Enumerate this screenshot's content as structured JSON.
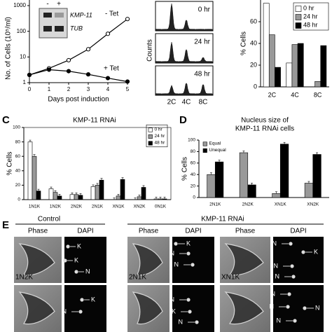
{
  "chart_data": [
    {
      "type": "line",
      "ylabel": "No. of Cells (10⁵/ml)",
      "xlabel": "Days post induction",
      "x": [
        0,
        1,
        2,
        3,
        4,
        5
      ],
      "xlim": [
        0,
        5
      ],
      "xticks": [
        0,
        1,
        2,
        3,
        4,
        5
      ],
      "log_y": true,
      "ylim": [
        1,
        1000
      ],
      "yticks": [
        1,
        10,
        100,
        1000
      ],
      "series": [
        {
          "name": "- Tet",
          "color": "#000000",
          "marker_fill": "#ffffff",
          "values": [
            2,
            3.6,
            7.5,
            20,
            80,
            300
          ]
        },
        {
          "name": "+ Tet",
          "color": "#000000",
          "marker_fill": "#000000",
          "values": [
            2,
            3.2,
            2.8,
            2.1,
            1.5,
            1.1
          ]
        }
      ],
      "inset": {
        "lanes": [
          "-",
          "+"
        ],
        "bands": [
          "KMP-11",
          "TUB"
        ]
      }
    },
    {
      "type": "bar",
      "ylabel": "% Cells",
      "categories": [
        "2C",
        "4C",
        "8C"
      ],
      "ylim": [
        0,
        80
      ],
      "yticks": [
        0,
        20,
        40,
        60
      ],
      "legend": "top-right",
      "series": [
        {
          "name": "0 hr",
          "color": "#ffffff",
          "values": [
            77,
            22,
            0
          ]
        },
        {
          "name": "24 hr",
          "color": "#999999",
          "values": [
            48,
            39,
            5
          ]
        },
        {
          "name": "48 hr",
          "color": "#000000",
          "values": [
            18,
            40,
            38
          ]
        }
      ]
    },
    {
      "type": "bar",
      "letter": "C",
      "title": "KMP-11 RNAi",
      "ylabel": "% Cells",
      "categories": [
        "1N1K",
        "1N2K",
        "2N2K",
        "2N1K",
        "XN1K",
        "XN2K",
        "0N1K"
      ],
      "ylim": [
        0,
        100
      ],
      "yticks": [
        0,
        20,
        40,
        60,
        80,
        100
      ],
      "legend": "top-right",
      "series": [
        {
          "name": "0 hr",
          "color": "#ffffff",
          "values": [
            80,
            15,
            7,
            18,
            0,
            0,
            1
          ]
        },
        {
          "name": "24 hr",
          "color": "#999999",
          "values": [
            60,
            10,
            7,
            20,
            5,
            4,
            1
          ]
        },
        {
          "name": "48 hr",
          "color": "#000000",
          "values": [
            12,
            5,
            6,
            27,
            28,
            17,
            1
          ]
        }
      ]
    },
    {
      "type": "bar",
      "letter": "D",
      "title_lines": [
        "Nucleus size of",
        "KMP-11 RNAi cells"
      ],
      "ylabel": "% Cells",
      "categories": [
        "2N1K",
        "2N2K",
        "XN1K",
        "XN2K"
      ],
      "ylim": [
        0,
        100
      ],
      "yticks": [
        0,
        20,
        40,
        60,
        80,
        100
      ],
      "legend": "top-left",
      "series": [
        {
          "name": "Equal",
          "color": "#999999",
          "values": [
            40,
            78,
            7,
            25
          ]
        },
        {
          "name": "Unequal",
          "color": "#000000",
          "values": [
            62,
            22,
            93,
            75
          ]
        }
      ]
    }
  ],
  "histograms": {
    "timepoints": [
      "0 hr",
      "24 hr",
      "48 hr"
    ],
    "ylabel": "Counts",
    "xlabels": [
      "2C",
      "4C",
      "8C"
    ]
  },
  "microscopy": {
    "letter": "E",
    "groups": [
      "Control",
      "KMP-11 RNAi"
    ],
    "column_headers": [
      "Phase",
      "DAPI",
      "Phase",
      "DAPI",
      "Phase",
      "DAPI"
    ],
    "cell_labels": [
      "1N2K",
      "2N1K",
      "XN1K"
    ],
    "arrow_labels": [
      "K",
      "K",
      "N",
      "N",
      "K",
      "K",
      "N",
      "N",
      "N",
      "K",
      "N",
      "N",
      "K",
      "N",
      "N",
      "N",
      "N",
      "N",
      "N"
    ]
  }
}
